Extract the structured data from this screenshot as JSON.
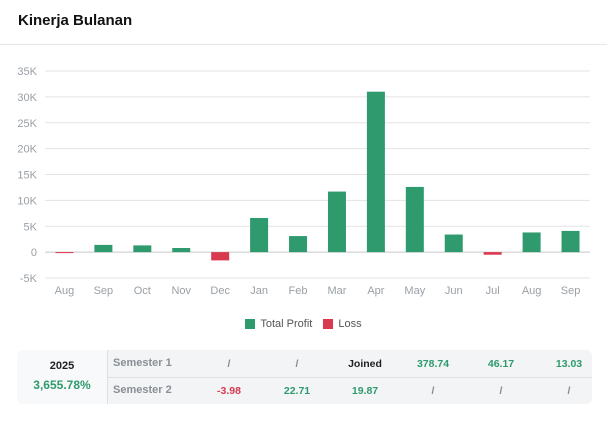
{
  "header": {
    "title": "Kinerja Bulanan"
  },
  "chart_data": {
    "type": "bar",
    "categories": [
      "Aug",
      "Sep",
      "Oct",
      "Nov",
      "Dec",
      "Jan",
      "Feb",
      "Mar",
      "Apr",
      "May",
      "Jun",
      "Jul",
      "Aug",
      "Sep"
    ],
    "values": [
      -80,
      1400,
      1300,
      800,
      -1600,
      6600,
      3100,
      11700,
      31000,
      12600,
      3400,
      -500,
      3800,
      4100
    ],
    "ylim": [
      -5000,
      35000
    ],
    "yticks": [
      35000,
      30000,
      25000,
      20000,
      15000,
      10000,
      5000,
      0,
      -5000
    ],
    "ytick_labels": [
      "35K",
      "30K",
      "25K",
      "20K",
      "15K",
      "10K",
      "5K",
      "0",
      "-5K"
    ],
    "grid": true,
    "colors": {
      "profit": "#2e9a6e",
      "loss": "#d9394f"
    },
    "legend": [
      {
        "name": "Total Profit",
        "color": "#2e9a6e"
      },
      {
        "name": "Loss",
        "color": "#d9394f"
      }
    ]
  },
  "summary": {
    "year": "2025",
    "total": "3,655.78%",
    "rows": [
      {
        "label": "Semester 1",
        "cells": [
          {
            "text": "/",
            "kind": "empty"
          },
          {
            "text": "/",
            "kind": "empty"
          },
          {
            "text": "Joined",
            "kind": "dark"
          },
          {
            "text": "378.74",
            "kind": "pos"
          },
          {
            "text": "46.17",
            "kind": "pos"
          },
          {
            "text": "13.03",
            "kind": "pos"
          }
        ]
      },
      {
        "label": "Semester 2",
        "cells": [
          {
            "text": "-3.98",
            "kind": "neg"
          },
          {
            "text": "22.71",
            "kind": "pos"
          },
          {
            "text": "19.87",
            "kind": "pos"
          },
          {
            "text": "/",
            "kind": "empty"
          },
          {
            "text": "/",
            "kind": "empty"
          },
          {
            "text": "/",
            "kind": "empty"
          }
        ]
      }
    ]
  }
}
